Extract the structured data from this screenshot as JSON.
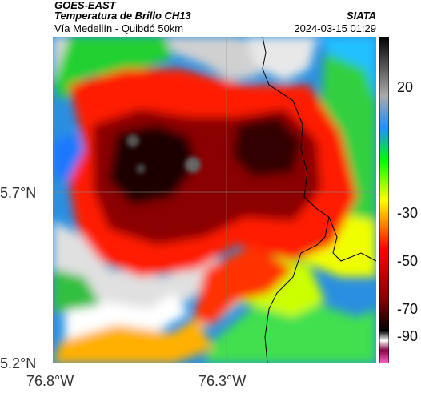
{
  "header": {
    "satellite": "GOES-EAST",
    "product": "Temperatura de Brillo CH13",
    "route": "Vía Medellín - Quibdó 50km",
    "agency": "SIATA",
    "datetime": "2024-03-15 01:29"
  },
  "map": {
    "longitude_labels": [
      "76.8°W",
      "76.3°W"
    ],
    "latitude_labels": [
      "5.7°N",
      "5.2°N"
    ]
  },
  "colorbar": {
    "tick_labels": [
      "20",
      "-30",
      "-50",
      "-70",
      "-90"
    ],
    "colors": [
      "#ff66cc",
      "#880044",
      "#ffffff",
      "#000000",
      "#8b0000",
      "#ff0000",
      "#ffff00",
      "#00ff00",
      "#1e90ff",
      "#aaaaaa",
      "#000000"
    ]
  }
}
